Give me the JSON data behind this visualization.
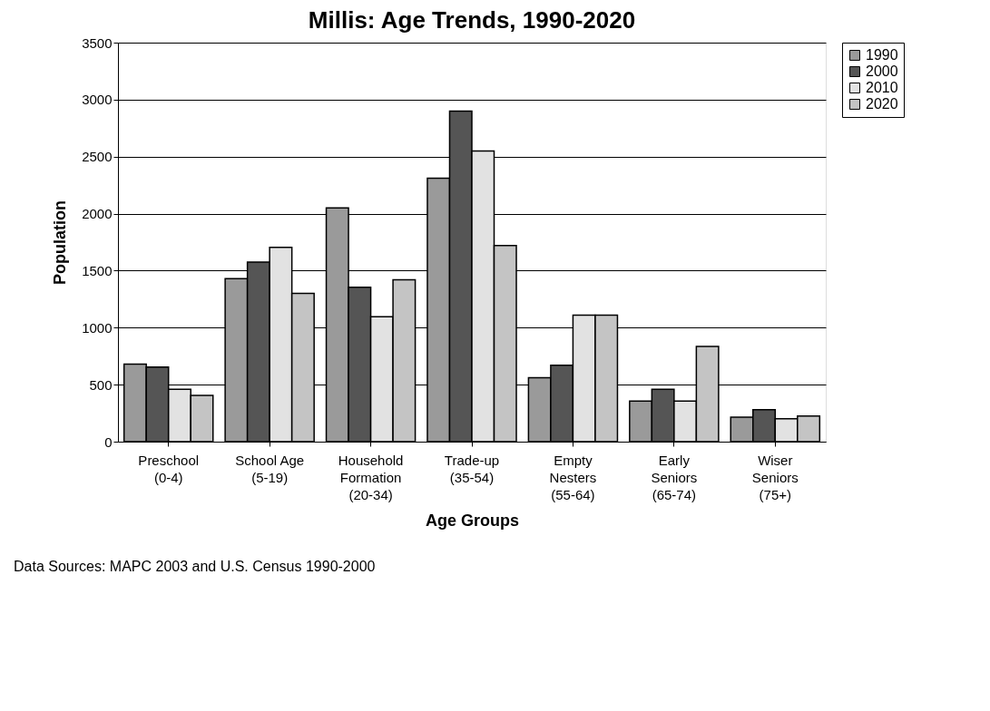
{
  "chart_data": {
    "type": "bar",
    "title": "Millis: Age Trends, 1990-2020",
    "xlabel": "Age Groups",
    "ylabel": "Population",
    "categories": [
      "Preschool\n(0-4)",
      "School Age\n(5-19)",
      "Household\nFormation\n(20-34)",
      "Trade-up\n(35-54)",
      "Empty\nNesters\n(55-64)",
      "Early\nSeniors\n(65-74)",
      "Wiser\nSeniors\n(75+)"
    ],
    "series": [
      {
        "name": "1990",
        "color": "#9a9a9a",
        "values": [
          680,
          1430,
          2050,
          2310,
          560,
          355,
          215
        ]
      },
      {
        "name": "2000",
        "color": "#555555",
        "values": [
          655,
          1575,
          1355,
          2900,
          670,
          460,
          280
        ]
      },
      {
        "name": "2010",
        "color": "#e2e2e2",
        "values": [
          460,
          1705,
          1095,
          2550,
          1110,
          355,
          200
        ]
      },
      {
        "name": "2020",
        "color": "#c4c4c4",
        "values": [
          405,
          1300,
          1420,
          1720,
          1110,
          835,
          225
        ]
      }
    ],
    "ylim": [
      0,
      3500
    ],
    "yticks": [
      0,
      500,
      1000,
      1500,
      2000,
      2500,
      3000,
      3500
    ],
    "grid": "y",
    "legend": "right",
    "annotations": [
      "Data Sources: MAPC 2003 and U.S. Census 1990-2000"
    ]
  }
}
